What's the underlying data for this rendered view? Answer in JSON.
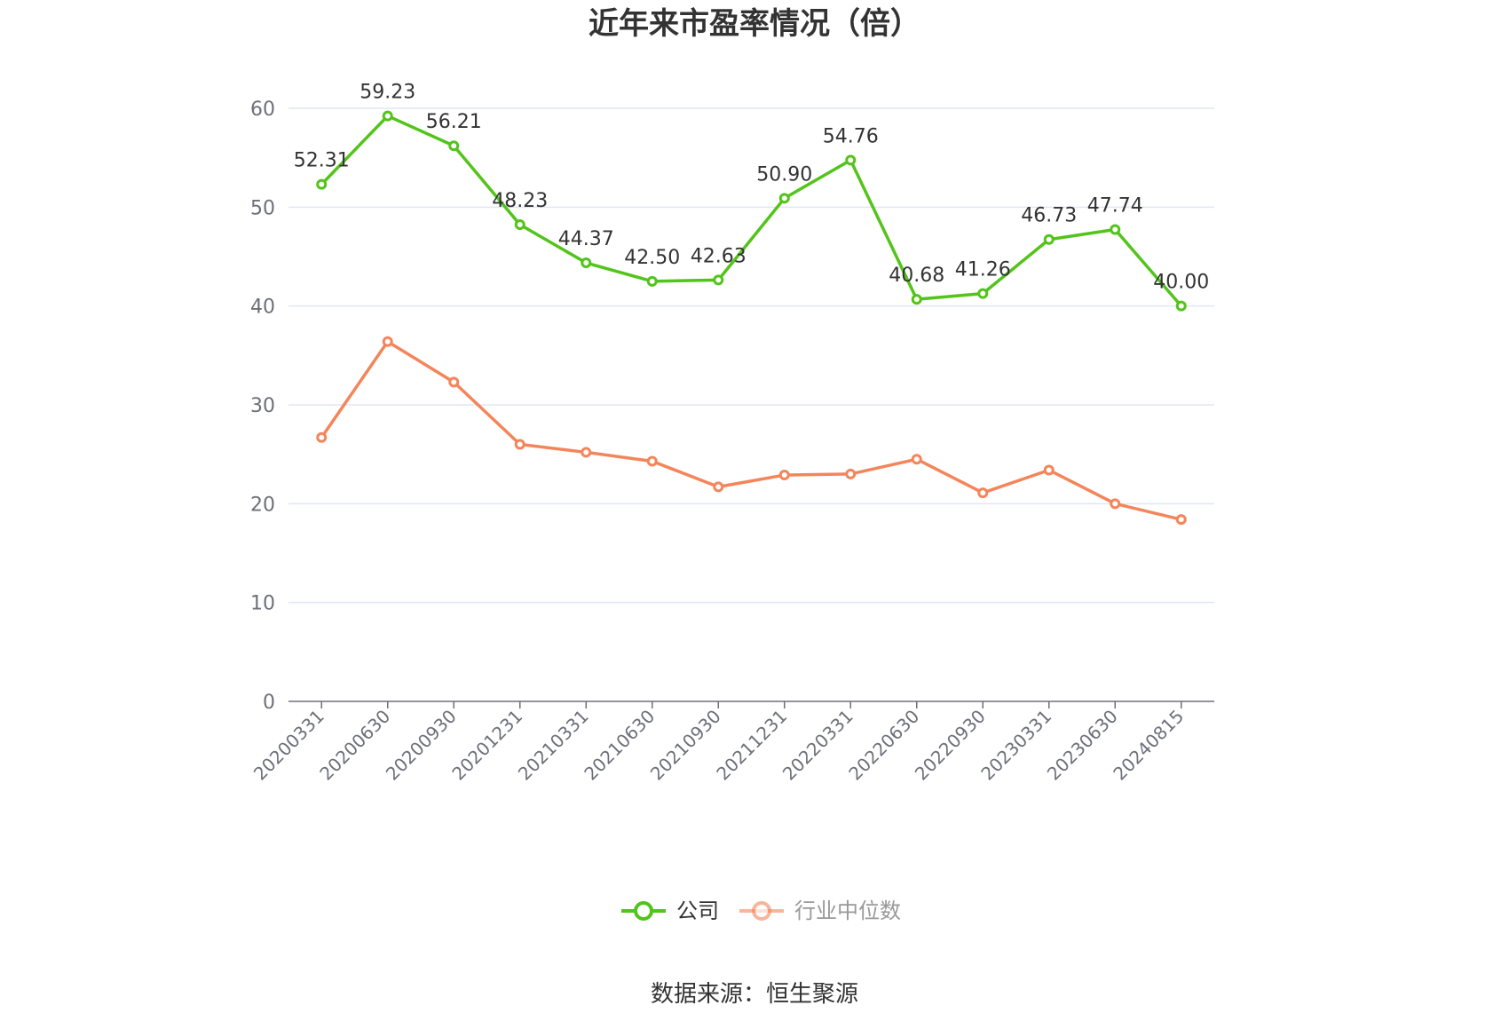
{
  "chart_data": {
    "type": "line",
    "title": "近年来市盈率情况（倍）",
    "categories": [
      "20200331",
      "20200630",
      "20200930",
      "20201231",
      "20210331",
      "20210630",
      "20210930",
      "20211231",
      "20220331",
      "20220630",
      "20220930",
      "20230331",
      "20230630",
      "20240815"
    ],
    "series": [
      {
        "name": "公司",
        "color": "#52c41a",
        "values": [
          52.31,
          59.23,
          56.21,
          48.23,
          44.37,
          42.5,
          42.63,
          50.9,
          54.76,
          40.68,
          41.26,
          46.73,
          47.74,
          40.0
        ],
        "labels": [
          "52.31",
          "59.23",
          "56.21",
          "48.23",
          "44.37",
          "42.50",
          "42.63",
          "50.90",
          "54.76",
          "40.68",
          "41.26",
          "46.73",
          "47.74",
          "40.00"
        ]
      },
      {
        "name": "行业中位数",
        "color": "#f4855a",
        "values": [
          26.7,
          36.4,
          32.3,
          26.0,
          25.2,
          24.3,
          21.7,
          22.9,
          23.0,
          24.5,
          21.1,
          23.4,
          20.0,
          18.4
        ]
      }
    ],
    "yticks": [
      "0",
      "10",
      "20",
      "30",
      "40",
      "50",
      "60"
    ],
    "ylim": [
      0,
      60
    ],
    "grid": true,
    "legend_position": "bottom"
  },
  "source": "数据来源：恒生聚源"
}
